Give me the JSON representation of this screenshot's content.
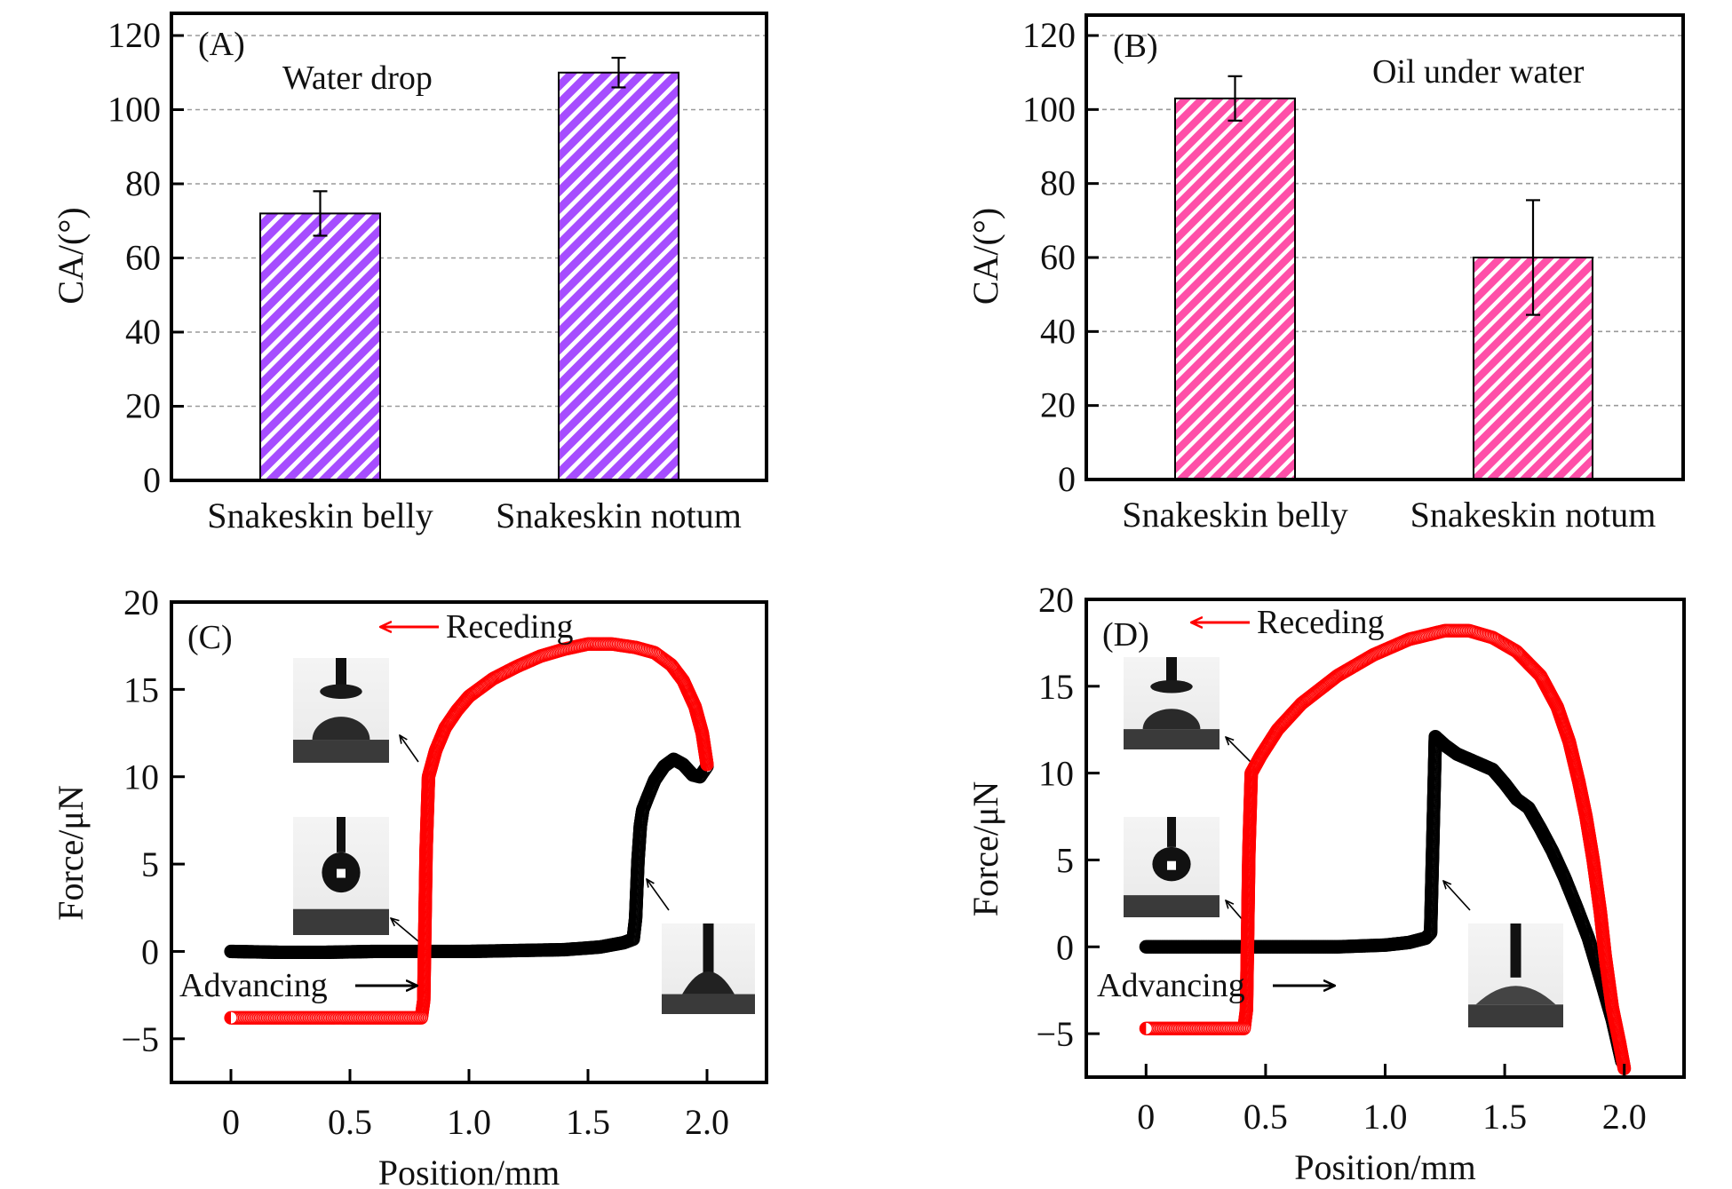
{
  "figure": {
    "colors": {
      "purple": "#a64dff",
      "pink": "#ff4fa8",
      "red": "#ff0000",
      "black": "#000000",
      "grid": "#9a9a9a"
    }
  },
  "chart_data": [
    {
      "id": "A",
      "type": "bar",
      "panel_label": "(A)",
      "annotation": "Water drop",
      "categories": [
        "Snakeskin belly",
        "Snakeskin notum"
      ],
      "values": [
        72,
        110
      ],
      "errors": [
        6,
        4
      ],
      "ylabel": "CA/(°)",
      "xlabel": "",
      "ylim": [
        0,
        126
      ],
      "yticks": [
        0,
        20,
        40,
        60,
        80,
        100,
        120
      ],
      "ytick_labels": [
        "0",
        "20",
        "40",
        "60",
        "80",
        "100",
        "120"
      ],
      "grid": "horizontal dashed",
      "fill": "purple diagonal hatch"
    },
    {
      "id": "B",
      "type": "bar",
      "panel_label": "(B)",
      "annotation": "Oil under water",
      "categories": [
        "Snakeskin belly",
        "Snakeskin notum"
      ],
      "values": [
        103,
        60
      ],
      "errors": [
        6,
        15.5
      ],
      "ylabel": "CA/(°)",
      "xlabel": "",
      "ylim": [
        0,
        126
      ],
      "yticks": [
        0,
        20,
        40,
        60,
        80,
        100,
        120
      ],
      "ytick_labels": [
        "0",
        "20",
        "40",
        "60",
        "80",
        "100",
        "120"
      ],
      "grid": "horizontal dashed",
      "fill": "pink diagonal hatch"
    },
    {
      "id": "C",
      "type": "scatter",
      "panel_label": "(C)",
      "xlabel": "Position/mm",
      "ylabel": "Force/μN",
      "xlim": [
        -0.25,
        2.25
      ],
      "ylim": [
        -7.5,
        20
      ],
      "xticks": [
        0,
        0.5,
        1.0,
        1.5,
        2.0
      ],
      "xtick_labels": [
        "0",
        "0.5",
        "1.0",
        "1.5",
        "2.0"
      ],
      "yticks": [
        -5,
        0,
        5,
        10,
        15,
        20
      ],
      "ytick_labels": [
        "−5",
        "0",
        "5",
        "10",
        "15",
        "20"
      ],
      "annotations": [
        {
          "text": "Receding",
          "arrow": "left",
          "arrow_color": "red"
        },
        {
          "text": "Advancing",
          "arrow": "right",
          "arrow_color": "black"
        }
      ],
      "series": [
        {
          "name": "Advancing",
          "color": "black",
          "points": [
            [
              0,
              0
            ],
            [
              0.2,
              -0.05
            ],
            [
              0.4,
              -0.05
            ],
            [
              0.6,
              0
            ],
            [
              0.8,
              0
            ],
            [
              1.0,
              0
            ],
            [
              1.2,
              0.05
            ],
            [
              1.4,
              0.1
            ],
            [
              1.55,
              0.25
            ],
            [
              1.65,
              0.5
            ],
            [
              1.69,
              0.7
            ],
            [
              1.7,
              1.9
            ],
            [
              1.71,
              5.2
            ],
            [
              1.72,
              7.2
            ],
            [
              1.73,
              8.1
            ],
            [
              1.75,
              8.8
            ],
            [
              1.78,
              9.8
            ],
            [
              1.82,
              10.6
            ],
            [
              1.86,
              11.0
            ],
            [
              1.9,
              10.7
            ],
            [
              1.94,
              10.1
            ],
            [
              1.97,
              10.0
            ],
            [
              2.0,
              10.6
            ]
          ]
        },
        {
          "name": "Receding",
          "color": "red",
          "points": [
            [
              2.0,
              10.7
            ],
            [
              1.98,
              12.5
            ],
            [
              1.95,
              14.0
            ],
            [
              1.9,
              15.5
            ],
            [
              1.85,
              16.4
            ],
            [
              1.78,
              17.1
            ],
            [
              1.7,
              17.4
            ],
            [
              1.6,
              17.6
            ],
            [
              1.5,
              17.6
            ],
            [
              1.4,
              17.3
            ],
            [
              1.3,
              16.9
            ],
            [
              1.2,
              16.3
            ],
            [
              1.1,
              15.6
            ],
            [
              1.0,
              14.6
            ],
            [
              0.95,
              13.8
            ],
            [
              0.9,
              12.8
            ],
            [
              0.86,
              11.5
            ],
            [
              0.83,
              10.0
            ],
            [
              0.82,
              5.8
            ],
            [
              0.81,
              -2.8
            ],
            [
              0.8,
              -3.8
            ],
            [
              0.6,
              -3.8
            ],
            [
              0.4,
              -3.8
            ],
            [
              0.2,
              -3.8
            ],
            [
              0,
              -3.8
            ]
          ]
        }
      ]
    },
    {
      "id": "D",
      "type": "scatter",
      "panel_label": "(D)",
      "xlabel": "Position/mm",
      "ylabel": "Force/μN",
      "xlim": [
        -0.25,
        2.25
      ],
      "ylim": [
        -7.5,
        20
      ],
      "xticks": [
        0,
        0.5,
        1.0,
        1.5,
        2.0
      ],
      "xtick_labels": [
        "0",
        "0.5",
        "1.0",
        "1.5",
        "2.0"
      ],
      "yticks": [
        -5,
        0,
        5,
        10,
        15,
        20
      ],
      "ytick_labels": [
        "−5",
        "0",
        "5",
        "10",
        "15",
        "20"
      ],
      "annotations": [
        {
          "text": "Receding",
          "arrow": "left",
          "arrow_color": "red"
        },
        {
          "text": "Advancing",
          "arrow": "right",
          "arrow_color": "black"
        }
      ],
      "series": [
        {
          "name": "Advancing",
          "color": "black",
          "points": [
            [
              0,
              0
            ],
            [
              0.2,
              0
            ],
            [
              0.4,
              0
            ],
            [
              0.6,
              0
            ],
            [
              0.8,
              0
            ],
            [
              1.0,
              0.1
            ],
            [
              1.1,
              0.25
            ],
            [
              1.17,
              0.5
            ],
            [
              1.19,
              0.8
            ],
            [
              1.2,
              6.4
            ],
            [
              1.21,
              12.1
            ],
            [
              1.25,
              11.6
            ],
            [
              1.3,
              11.1
            ],
            [
              1.35,
              10.8
            ],
            [
              1.4,
              10.5
            ],
            [
              1.45,
              10.2
            ],
            [
              1.5,
              9.4
            ],
            [
              1.55,
              8.5
            ],
            [
              1.6,
              8.0
            ],
            [
              1.65,
              6.8
            ],
            [
              1.7,
              5.5
            ],
            [
              1.75,
              4.0
            ],
            [
              1.8,
              2.3
            ],
            [
              1.85,
              0.5
            ],
            [
              1.9,
              -1.8
            ],
            [
              1.95,
              -4.2
            ],
            [
              1.99,
              -6.6
            ]
          ]
        },
        {
          "name": "Receding",
          "color": "red",
          "points": [
            [
              2.0,
              -7.0
            ],
            [
              1.98,
              -5.5
            ],
            [
              1.95,
              -3.5
            ],
            [
              1.92,
              -0.5
            ],
            [
              1.9,
              2.0
            ],
            [
              1.87,
              5.0
            ],
            [
              1.84,
              7.5
            ],
            [
              1.81,
              9.5
            ],
            [
              1.77,
              11.8
            ],
            [
              1.72,
              13.8
            ],
            [
              1.65,
              15.6
            ],
            [
              1.55,
              17.0
            ],
            [
              1.45,
              17.8
            ],
            [
              1.35,
              18.2
            ],
            [
              1.25,
              18.2
            ],
            [
              1.1,
              17.7
            ],
            [
              0.95,
              16.8
            ],
            [
              0.8,
              15.6
            ],
            [
              0.65,
              14.0
            ],
            [
              0.55,
              12.5
            ],
            [
              0.48,
              11.0
            ],
            [
              0.44,
              10.0
            ],
            [
              0.43,
              5.4
            ],
            [
              0.42,
              -3.6
            ],
            [
              0.41,
              -4.7
            ],
            [
              0.3,
              -4.7
            ],
            [
              0.15,
              -4.7
            ],
            [
              0,
              -4.7
            ]
          ]
        }
      ]
    }
  ]
}
